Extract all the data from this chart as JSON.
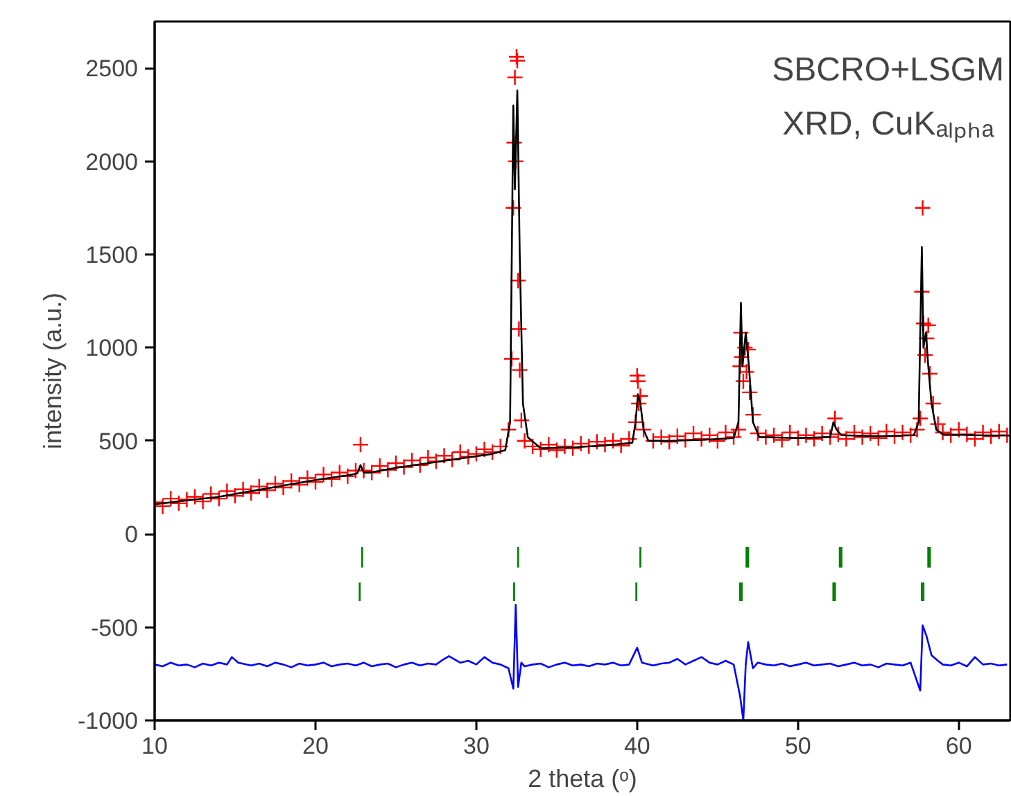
{
  "chart_data": {
    "type": "scatter",
    "xlabel": "2 theta (ᵒ)",
    "ylabel": "intensity (a.u.)",
    "annotations": [
      "SBCRO+LSGM",
      "XRD, CuKₐₗₚₕₐ"
    ],
    "xlim": [
      10,
      63.2
    ],
    "ylim": [
      -1000,
      2750
    ],
    "xticks": [
      10,
      20,
      30,
      40,
      50,
      60
    ],
    "yticks": [
      -1000,
      -500,
      0,
      500,
      1000,
      1500,
      2000,
      2500
    ],
    "grid": false,
    "series": [
      {
        "marker": "cross",
        "color": "#ff0000",
        "x": [
          10,
          10.5,
          11,
          11.5,
          12,
          12.5,
          13,
          13.5,
          14,
          14.5,
          15,
          15.5,
          16,
          16.5,
          17,
          17.5,
          18,
          18.5,
          19,
          19.5,
          20,
          20.5,
          21,
          21.5,
          22,
          22.5,
          22.8,
          23,
          23.5,
          24,
          24.5,
          25,
          25.5,
          26,
          26.5,
          27,
          27.5,
          28,
          28.5,
          29,
          29.5,
          30,
          30.5,
          31,
          31.5,
          32,
          32.2,
          32.3,
          32.35,
          32.4,
          32.45,
          32.5,
          32.55,
          32.6,
          32.65,
          32.7,
          32.8,
          33,
          33.5,
          34,
          34.5,
          35,
          35.5,
          36,
          36.5,
          37,
          37.5,
          38,
          38.5,
          39,
          39.5,
          39.9,
          40,
          40.05,
          40.1,
          40.2,
          40.4,
          41,
          41.5,
          42,
          42.5,
          43,
          43.5,
          44,
          44.5,
          45,
          45.5,
          46,
          46.3,
          46.4,
          46.45,
          46.5,
          46.6,
          46.7,
          46.8,
          46.9,
          47,
          47.2,
          47.5,
          48,
          48.5,
          49,
          49.5,
          50,
          50.5,
          51,
          51.5,
          52,
          52.3,
          52.5,
          53,
          53.5,
          54,
          54.5,
          55,
          55.5,
          56,
          56.5,
          57,
          57.4,
          57.6,
          57.7,
          57.75,
          57.8,
          57.9,
          58,
          58.1,
          58.2,
          58.4,
          58.7,
          59,
          59.5,
          60,
          60.5,
          61,
          61.5,
          62,
          62.5,
          63
        ],
        "values": [
          170,
          150,
          190,
          165,
          185,
          200,
          175,
          215,
          190,
          230,
          205,
          240,
          220,
          255,
          235,
          270,
          250,
          285,
          265,
          300,
          280,
          320,
          295,
          330,
          310,
          340,
          480,
          340,
          330,
          365,
          345,
          380,
          360,
          395,
          370,
          410,
          390,
          420,
          400,
          440,
          415,
          430,
          455,
          440,
          470,
          560,
          940,
          1750,
          2100,
          2450,
          2000,
          2560,
          2540,
          1360,
          1100,
          880,
          610,
          500,
          470,
          455,
          480,
          450,
          470,
          460,
          485,
          470,
          495,
          480,
          500,
          475,
          510,
          600,
          850,
          820,
          700,
          740,
          560,
          500,
          520,
          495,
          525,
          505,
          540,
          510,
          530,
          500,
          545,
          520,
          560,
          900,
          1080,
          950,
          820,
          1000,
          870,
          990,
          760,
          640,
          540,
          520,
          530,
          505,
          545,
          515,
          530,
          510,
          540,
          520,
          620,
          535,
          510,
          545,
          520,
          540,
          515,
          550,
          525,
          545,
          530,
          560,
          620,
          1300,
          1750,
          1130,
          960,
          1050,
          1120,
          860,
          700,
          590,
          545,
          530,
          560,
          535,
          510,
          545,
          525,
          550,
          530
        ]
      },
      {
        "type": "line",
        "color": "#000000",
        "x": [
          10,
          12,
          14,
          16,
          18,
          20,
          22,
          22.6,
          22.8,
          23,
          23.4,
          25,
          27,
          29,
          31,
          31.8,
          32.1,
          32.3,
          32.4,
          32.55,
          32.7,
          32.9,
          33.2,
          34,
          36,
          38,
          39.7,
          39.9,
          40.05,
          40.2,
          40.4,
          40.7,
          42,
          44,
          46,
          46.3,
          46.45,
          46.55,
          46.75,
          46.95,
          47.2,
          47.6,
          50,
          52,
          52.2,
          52.4,
          52.7,
          55,
          57.2,
          57.5,
          57.7,
          57.8,
          57.95,
          58.1,
          58.3,
          58.6,
          59,
          61,
          63.2
        ],
        "values": [
          160,
          180,
          200,
          230,
          260,
          290,
          315,
          325,
          370,
          330,
          330,
          355,
          380,
          405,
          430,
          450,
          600,
          2300,
          1850,
          2380,
          1500,
          700,
          520,
          460,
          465,
          475,
          490,
          600,
          750,
          700,
          560,
          500,
          500,
          505,
          515,
          600,
          1240,
          900,
          1080,
          900,
          600,
          520,
          515,
          520,
          600,
          560,
          530,
          525,
          530,
          600,
          1540,
          1000,
          1080,
          900,
          700,
          560,
          535,
          530,
          528
        ]
      },
      {
        "type": "line",
        "color": "#0000ff",
        "x": [
          10,
          10.5,
          11,
          11.5,
          12,
          12.5,
          13,
          13.5,
          14,
          14.5,
          14.8,
          15.2,
          16,
          16.5,
          17,
          17.5,
          18,
          18.5,
          19,
          19.5,
          20,
          20.5,
          21,
          21.5,
          22,
          22.5,
          23,
          23.5,
          24,
          24.5,
          25,
          25.5,
          26,
          26.5,
          27,
          27.5,
          28,
          28.3,
          29,
          29.5,
          30,
          30.5,
          31,
          31.5,
          32,
          32.3,
          32.45,
          32.6,
          32.8,
          33,
          33.5,
          34,
          34.5,
          35,
          35.5,
          36,
          36.5,
          37,
          37.5,
          38,
          38.5,
          39,
          39.5,
          40,
          40.3,
          41,
          41.5,
          42,
          42.5,
          43,
          43.5,
          44,
          44.5,
          45,
          45.5,
          46,
          46.4,
          46.6,
          46.75,
          46.9,
          47.2,
          47.5,
          48,
          48.5,
          49,
          49.5,
          50,
          50.5,
          51,
          51.5,
          52,
          52.5,
          53,
          53.5,
          54,
          54.5,
          55,
          55.5,
          56,
          56.5,
          57,
          57.6,
          57.75,
          58,
          58.3,
          58.7,
          59,
          59.5,
          60,
          60.5,
          61,
          61.5,
          62,
          62.5,
          63
        ],
        "values": [
          -700,
          -710,
          -690,
          -705,
          -700,
          -715,
          -695,
          -705,
          -690,
          -700,
          -660,
          -690,
          -705,
          -695,
          -710,
          -690,
          -700,
          -715,
          -695,
          -705,
          -700,
          -690,
          -710,
          -700,
          -695,
          -705,
          -690,
          -710,
          -700,
          -695,
          -715,
          -700,
          -690,
          -705,
          -695,
          -700,
          -670,
          -655,
          -690,
          -680,
          -700,
          -660,
          -690,
          -700,
          -720,
          -830,
          -380,
          -820,
          -690,
          -710,
          -700,
          -695,
          -715,
          -700,
          -690,
          -705,
          -700,
          -710,
          -695,
          -700,
          -690,
          -705,
          -700,
          -610,
          -690,
          -705,
          -695,
          -690,
          -670,
          -700,
          -680,
          -660,
          -690,
          -700,
          -680,
          -700,
          -870,
          -1000,
          -700,
          -580,
          -720,
          -690,
          -700,
          -705,
          -695,
          -710,
          -700,
          -690,
          -705,
          -700,
          -695,
          -710,
          -700,
          -690,
          -705,
          -700,
          -715,
          -695,
          -700,
          -705,
          -690,
          -840,
          -490,
          -550,
          -650,
          -680,
          -700,
          -705,
          -690,
          -710,
          -660,
          -700,
          -695,
          -705,
          -700
        ]
      },
      {
        "type": "bar",
        "color": "#008000",
        "x": [
          22.75,
          22.9,
          32.35,
          32.6,
          39.95,
          40.2,
          46.4,
          46.5,
          46.8,
          46.9,
          52.2,
          52.3,
          52.6,
          52.7,
          57.7,
          57.8,
          58.1,
          58.2
        ],
        "base": [
          -360,
          -180,
          -360,
          -180,
          -360,
          -180,
          -360,
          -360,
          -180,
          -180,
          -360,
          -360,
          -180,
          -180,
          -360,
          -360,
          -180,
          -180
        ],
        "values": [
          100,
          110,
          100,
          110,
          100,
          110,
          100,
          100,
          110,
          110,
          100,
          100,
          110,
          110,
          100,
          100,
          110,
          110
        ]
      }
    ]
  }
}
